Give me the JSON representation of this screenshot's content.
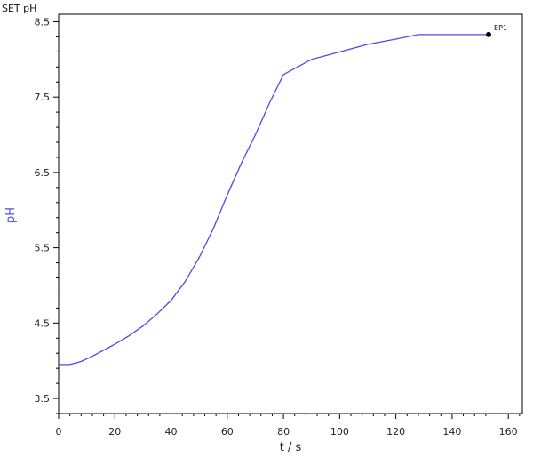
{
  "mode_label": "SET pH",
  "chart_data": {
    "type": "line",
    "title": "",
    "xlabel": "t / s",
    "ylabel": "pH",
    "xlim": [
      0,
      165
    ],
    "ylim": [
      3.3,
      8.6
    ],
    "xticks": [
      0,
      20,
      40,
      60,
      80,
      100,
      120,
      140,
      160
    ],
    "yticks": [
      3.5,
      4.5,
      5.5,
      6.5,
      7.5,
      8.5
    ],
    "grid": false,
    "legend": "none",
    "colors": {
      "line": "#4a4ae8",
      "ylabel": "#4a4ae8",
      "axis": "#000000",
      "marker": "#000000"
    },
    "series": [
      {
        "x": [
          0,
          4,
          8,
          12,
          16,
          20,
          25,
          30,
          35,
          40,
          45,
          50,
          55,
          60,
          65,
          70,
          75,
          80,
          85,
          90,
          95,
          100,
          110,
          120,
          128,
          135,
          140,
          145,
          150,
          153
        ],
        "y": [
          3.95,
          3.95,
          3.99,
          4.06,
          4.14,
          4.22,
          4.33,
          4.46,
          4.62,
          4.8,
          5.05,
          5.37,
          5.75,
          6.2,
          6.62,
          7.0,
          7.42,
          7.8,
          7.9,
          8.0,
          8.05,
          8.1,
          8.2,
          8.27,
          8.33,
          8.33,
          8.33,
          8.33,
          8.33,
          8.33
        ]
      }
    ],
    "annotations": [
      {
        "text": "EP1",
        "x": 153,
        "y": 8.33
      }
    ]
  }
}
